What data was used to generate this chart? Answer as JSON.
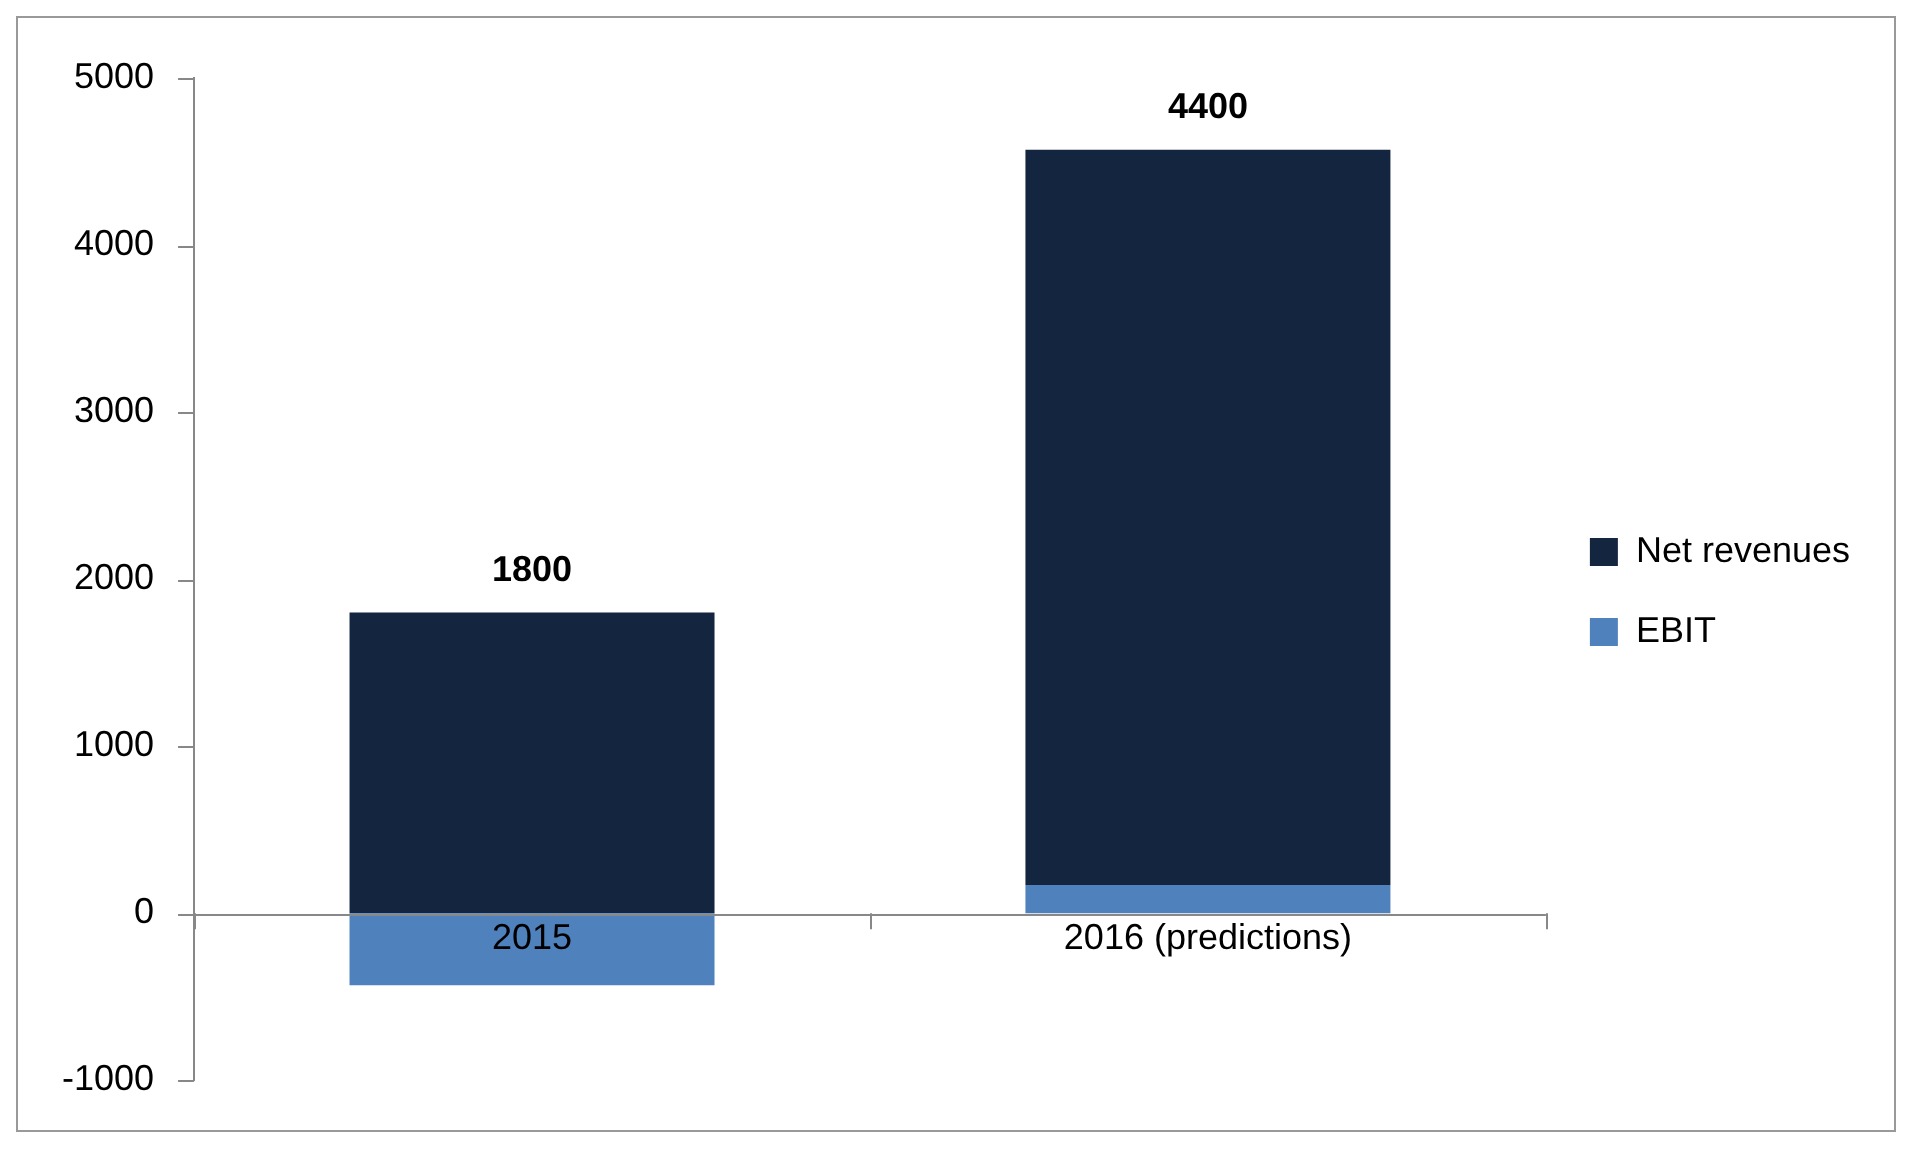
{
  "chart_data": {
    "type": "bar",
    "stacked": true,
    "categories": [
      "2015",
      "2016 (predictions)"
    ],
    "series": [
      {
        "name": "EBIT",
        "color": "#4f81bd",
        "values": [
          -430,
          170
        ]
      },
      {
        "name": "Net revenues",
        "color": "#14253f",
        "values": [
          1800,
          4400
        ],
        "value_labels": [
          "1800",
          "4400"
        ]
      }
    ],
    "ylim": [
      -1000,
      5000
    ],
    "yticks": [
      -1000,
      0,
      1000,
      2000,
      3000,
      4000,
      5000
    ],
    "grid": false,
    "legend": "right"
  }
}
